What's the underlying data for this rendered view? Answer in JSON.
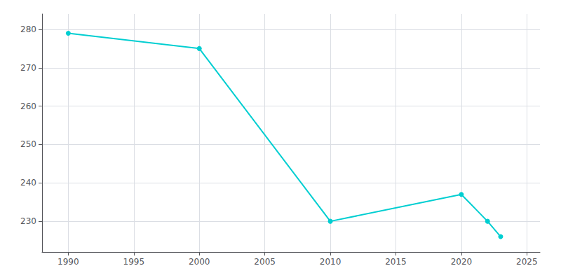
{
  "chart_data": {
    "type": "line",
    "x": [
      1990,
      2000,
      2010,
      2020,
      2022,
      2023
    ],
    "values": [
      279,
      275,
      230,
      237,
      230,
      226
    ],
    "color": "#00CED1",
    "marker": "circle",
    "xlim": [
      1988,
      2026
    ],
    "ylim": [
      222,
      284
    ],
    "xticks": [
      1990,
      1995,
      2000,
      2005,
      2010,
      2015,
      2020,
      2025
    ],
    "yticks": [
      230,
      240,
      250,
      260,
      270,
      280
    ],
    "grid": true
  }
}
